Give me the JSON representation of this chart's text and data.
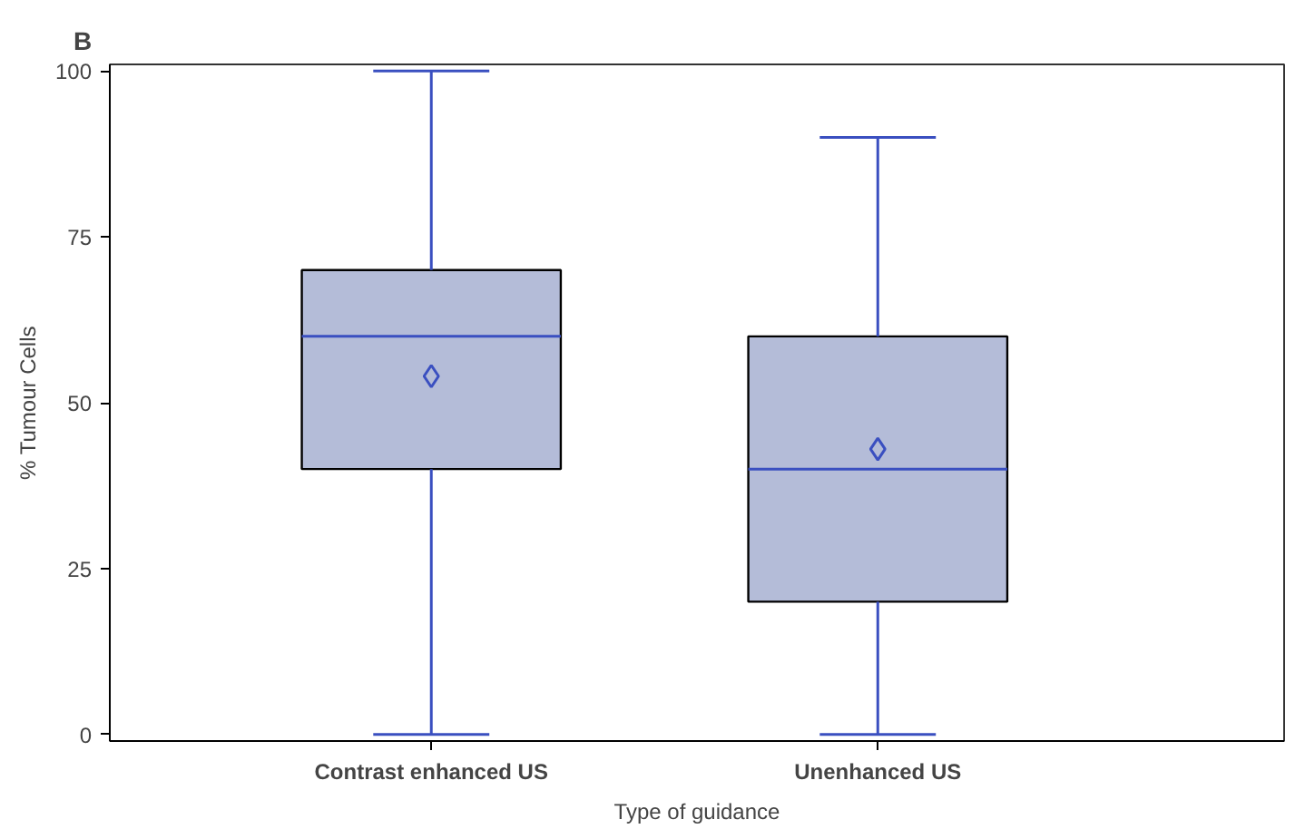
{
  "chart_data": {
    "type": "box",
    "xlabel": "Type of guidance",
    "ylabel": "% Tumour Cells",
    "annotations": [
      "B"
    ],
    "categories": [
      "Contrast enhanced US",
      "Unenhanced US"
    ],
    "color": "#b4bcd8",
    "boxes": [
      {
        "low": 0,
        "q1": 40,
        "median": 60,
        "q3": 70,
        "high": 100,
        "mean": 54
      },
      {
        "low": 0,
        "q1": 20,
        "median": 40,
        "q3": 60,
        "high": 90,
        "mean": 43
      }
    ],
    "ylim": [
      -1,
      101
    ],
    "yticks": [
      0,
      25,
      50,
      75,
      100
    ],
    "grid": false,
    "marker": "diamond"
  }
}
